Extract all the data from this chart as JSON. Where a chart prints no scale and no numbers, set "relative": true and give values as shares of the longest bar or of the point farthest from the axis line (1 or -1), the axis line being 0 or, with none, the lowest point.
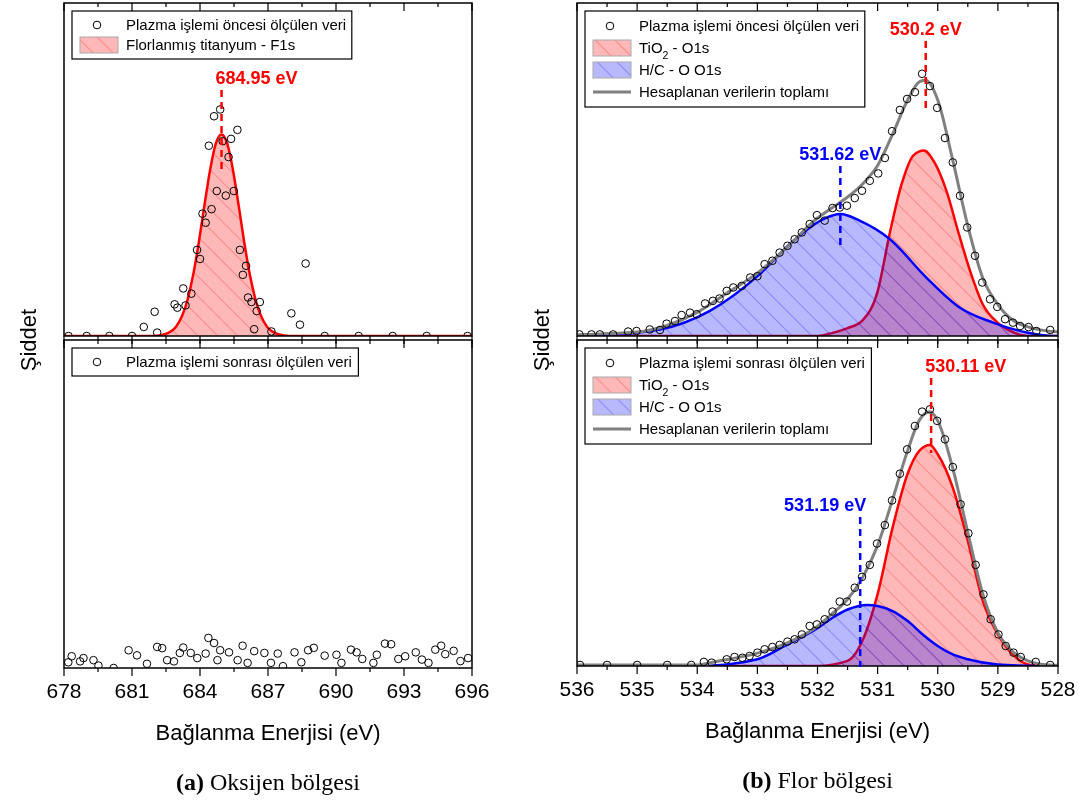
{
  "chart_data": [
    {
      "type": "scatter",
      "relative": true,
      "ylabel": "Şiddet",
      "xlim": [
        678,
        696
      ],
      "xticks": [
        678,
        {
          "value": 679.5,
          "label": null
        },
        681,
        {
          "value": 682.5,
          "label": null
        },
        684,
        {
          "value": 685.5,
          "label": null
        },
        687,
        {
          "value": 688.5,
          "label": null
        },
        690,
        {
          "value": 691.5,
          "label": null
        },
        693,
        {
          "value": 694.5,
          "label": null
        },
        696
      ],
      "tick_labels": false,
      "legend": "top left",
      "marker": "circle",
      "grid": false,
      "ref_lines": [
        {
          "axis": "x",
          "value": 684.95,
          "label": "684.95 eV",
          "color": "#ff0000",
          "line_style": "dashed"
        }
      ],
      "series": [
        {
          "name": "Plazma işlemi öncesi ölçülen veri",
          "color": "#000000",
          "x": [
            678.2,
            679,
            680,
            681,
            681.52,
            682.0,
            682.11,
            682.88,
            683.0,
            683.26,
            683.36,
            683.62,
            683.87,
            684.0,
            684.11,
            684.25,
            684.39,
            684.51,
            684.62,
            684.74,
            684.89,
            685.0,
            685.14,
            685.26,
            685.37,
            685.49,
            685.65,
            685.76,
            685.89,
            686.03,
            686.12,
            686.27,
            686.39,
            686.5,
            686.64,
            687.15,
            688.03,
            688.41,
            688.66,
            689.5,
            691,
            692.5,
            694,
            695.8
          ],
          "values": [
            0,
            0,
            0,
            0,
            0.04,
            0.107,
            0.015,
            0.14,
            0.125,
            0.21,
            0.135,
            0.187,
            0.38,
            0.34,
            0.54,
            0.5,
            0.84,
            0.56,
            0.97,
            0.64,
            1.0,
            0.86,
            0.62,
            0.79,
            0.87,
            0.64,
            0.91,
            0.38,
            0.27,
            0.31,
            0.17,
            0.15,
            0.03,
            0.11,
            0.15,
            0.02,
            0.1,
            0.05,
            0.32,
            0,
            0,
            0,
            0,
            0
          ]
        },
        {
          "name": "Florlanmış titanyum - F1s",
          "type": "area",
          "marker": "none",
          "color": "#ff0000",
          "x": [
            678,
            681.95,
            682.45,
            682.95,
            683.45,
            683.7,
            683.95,
            684.2,
            684.45,
            684.7,
            684.95,
            685.2,
            685.45,
            685.7,
            685.95,
            686.2,
            686.45,
            686.95,
            687.45,
            687.95,
            696
          ],
          "values": [
            0,
            0,
            0.008,
            0.042,
            0.16,
            0.27,
            0.415,
            0.58,
            0.735,
            0.85,
            0.89,
            0.85,
            0.735,
            0.58,
            0.415,
            0.27,
            0.16,
            0.042,
            0.008,
            0,
            0
          ]
        }
      ]
    },
    {
      "type": "scatter",
      "relative": true,
      "ylabel": "Şiddet",
      "xlim": [
        536,
        528
      ],
      "xticks": [
        536,
        {
          "value": 535.5,
          "label": null
        },
        535,
        {
          "value": 534.5,
          "label": null
        },
        534,
        {
          "value": 533.5,
          "label": null
        },
        533,
        {
          "value": 532.5,
          "label": null
        },
        532,
        {
          "value": 531.5,
          "label": null
        },
        531,
        {
          "value": 530.5,
          "label": null
        },
        530,
        {
          "value": 529.5,
          "label": null
        },
        529,
        {
          "value": 528.5,
          "label": null
        },
        528
      ],
      "tick_labels": false,
      "legend": "top left",
      "marker": "circle",
      "grid": false,
      "ref_lines": [
        {
          "axis": "x",
          "value": 530.2,
          "label": "530.2 eV",
          "color": "#ff0000",
          "line_style": "dashed"
        },
        {
          "axis": "x",
          "value": 531.62,
          "label": "531.62 eV",
          "color": "#0000ff",
          "line_style": "dashed"
        }
      ],
      "series": [
        {
          "name": "Plazma işlemi öncesi ölçülen veri",
          "color": "#000000",
          "x": [
            535.96,
            535.76,
            535.62,
            535.4,
            535.15,
            535.01,
            534.79,
            534.62,
            534.51,
            534.37,
            534.26,
            534.12,
            534.01,
            533.87,
            533.74,
            533.63,
            533.51,
            533.4,
            533.26,
            533.12,
            533.0,
            532.88,
            532.75,
            532.63,
            532.5,
            532.38,
            532.26,
            532.13,
            532.01,
            531.88,
            531.75,
            531.63,
            531.51,
            531.38,
            531.26,
            531.13,
            530.99,
            530.88,
            530.76,
            530.63,
            530.51,
            530.38,
            530.26,
            530.13,
            530.01,
            529.88,
            529.75,
            529.63,
            529.51,
            529.38,
            529.26,
            529.13,
            529.01,
            528.88,
            528.75,
            528.63,
            528.49,
            528.36,
            528.13
          ],
          "values": [
            0.006,
            0.006,
            0.006,
            0.006,
            0.017,
            0.019,
            0.025,
            0.023,
            0.047,
            0.057,
            0.08,
            0.089,
            0.083,
            0.124,
            0.134,
            0.143,
            0.172,
            0.185,
            0.191,
            0.223,
            0.228,
            0.274,
            0.287,
            0.318,
            0.344,
            0.369,
            0.395,
            0.427,
            0.461,
            0.44,
            0.488,
            0.49,
            0.497,
            0.526,
            0.554,
            0.592,
            0.62,
            0.679,
            0.781,
            0.862,
            0.904,
            0.93,
            1.0,
            0.953,
            0.87,
            0.755,
            0.662,
            0.535,
            0.414,
            0.306,
            0.204,
            0.14,
            0.111,
            0.064,
            0.051,
            0.038,
            0.034,
            0.019,
            0.023
          ]
        },
        {
          "name": "TiO$_{2}$ - O1s",
          "type": "area",
          "marker": "none",
          "color": "#ff0000",
          "x": [
            536,
            532,
            531.75,
            531.5,
            531.25,
            531,
            530.8,
            530.6,
            530.4,
            530.23,
            530.05,
            529.85,
            529.65,
            529.45,
            529.25,
            529,
            528.75,
            528.5,
            528
          ],
          "values": [
            0,
            0,
            0.012,
            0.03,
            0.06,
            0.17,
            0.39,
            0.58,
            0.69,
            0.707,
            0.66,
            0.55,
            0.39,
            0.24,
            0.12,
            0.05,
            0.015,
            0,
            0
          ]
        },
        {
          "name": "H/C - O  O1s",
          "type": "area",
          "marker": "none",
          "color": "#0000ff",
          "x": [
            536,
            535.62,
            534.62,
            533.79,
            532.96,
            532.4,
            531.9,
            531.62,
            531.3,
            530.8,
            530.19,
            529.63,
            529.08,
            528.52,
            528.08,
            528
          ],
          "values": [
            0,
            0.003,
            0.025,
            0.096,
            0.236,
            0.363,
            0.446,
            0.465,
            0.44,
            0.37,
            0.223,
            0.108,
            0.051,
            0.013,
            0,
            0
          ]
        },
        {
          "name": "Hesaplanan verilerin toplamı",
          "type": "line",
          "marker": "none",
          "color": "#808080",
          "x": [
            536,
            535,
            534.5,
            534,
            533.5,
            533,
            532.5,
            532,
            531.75,
            531.5,
            531.25,
            531,
            530.75,
            530.5,
            530.3,
            530.2,
            530,
            529.75,
            529.5,
            529.25,
            529,
            528.75,
            528.5,
            528
          ],
          "values": [
            0.005,
            0.015,
            0.04,
            0.09,
            0.165,
            0.24,
            0.34,
            0.45,
            0.49,
            0.53,
            0.58,
            0.65,
            0.77,
            0.9,
            0.97,
            0.975,
            0.9,
            0.67,
            0.42,
            0.22,
            0.12,
            0.06,
            0.035,
            0.015
          ]
        }
      ]
    },
    {
      "type": "scatter",
      "relative": true,
      "xlabel": "Bağlanma Enerjisi (eV)",
      "annotations": [
        "(a) Oksijen bölgesi"
      ],
      "xlim": [
        678,
        696
      ],
      "xticks": [
        678,
        {
          "value": 679.5,
          "label": null
        },
        681,
        {
          "value": 682.5,
          "label": null
        },
        684,
        {
          "value": 685.5,
          "label": null
        },
        687,
        {
          "value": 688.5,
          "label": null
        },
        690,
        {
          "value": 691.5,
          "label": null
        },
        693,
        {
          "value": 694.5,
          "label": null
        },
        696
      ],
      "tick_labels": "x",
      "legend": "top left",
      "marker": "circle",
      "grid": false,
      "series": [
        {
          "name": "Plazma işlemi sonrası ölçülen veri",
          "color": "#000000",
          "x": [
            678.19,
            678.34,
            678.71,
            678.86,
            679.3,
            679.52,
            680.19,
            680.85,
            681.22,
            681.66,
            682.11,
            682.33,
            682.55,
            682.85,
            683.11,
            683.26,
            683.59,
            683.88,
            684.25,
            684.37,
            684.62,
            684.77,
            684.89,
            685.28,
            685.66,
            685.88,
            686.1,
            686.39,
            686.84,
            687.13,
            687.43,
            687.66,
            688.17,
            688.47,
            688.77,
            689.02,
            689.5,
            690.02,
            690.24,
            690.66,
            690.91,
            691.16,
            691.65,
            691.8,
            692.16,
            692.43,
            692.75,
            693.05,
            693.52,
            693.79,
            694.08,
            694.38,
            694.64,
            694.82,
            695.19,
            695.49,
            695.83
          ],
          "values": [
            0.19,
            0.39,
            0.22,
            0.33,
            0.26,
            0.08,
            0,
            0.59,
            0.42,
            0.14,
            0.7,
            0.66,
            0.26,
            0.22,
            0.5,
            0.68,
            0.5,
            0.33,
            0.48,
            1.0,
            0.83,
            0.26,
            0.59,
            0.52,
            0.26,
            0.74,
            0.17,
            0.56,
            0.5,
            0.17,
            0.48,
            0.06,
            0.52,
            0.19,
            0.59,
            0.67,
            0.41,
            0.44,
            0.17,
            0.61,
            0.52,
            0.3,
            0.17,
            0.44,
            0.81,
            0.79,
            0.3,
            0.39,
            0.52,
            0.28,
            0.17,
            0.61,
            0.74,
            0.46,
            0.57,
            0.23,
            0.33
          ]
        }
      ]
    },
    {
      "type": "scatter",
      "relative": true,
      "xlabel": "Bağlanma Enerjisi (eV)",
      "annotations": [
        "(b) Flor bölgesi"
      ],
      "xlim": [
        536,
        528
      ],
      "xticks": [
        536,
        {
          "value": 535.5,
          "label": null
        },
        535,
        {
          "value": 534.5,
          "label": null
        },
        534,
        {
          "value": 533.5,
          "label": null
        },
        533,
        {
          "value": 532.5,
          "label": null
        },
        532,
        {
          "value": 531.5,
          "label": null
        },
        531,
        {
          "value": 530.5,
          "label": null
        },
        530,
        {
          "value": 529.5,
          "label": null
        },
        529,
        {
          "value": 528.5,
          "label": null
        },
        528
      ],
      "tick_labels": "x",
      "legend": "top left",
      "marker": "circle",
      "grid": false,
      "ref_lines": [
        {
          "axis": "x",
          "value": 530.11,
          "label": "530.11 eV",
          "color": "#ff0000",
          "line_style": "dashed"
        },
        {
          "axis": "x",
          "value": 531.29,
          "label": "531.19 eV",
          "color": "#0000ff",
          "line_style": "dashed"
        }
      ],
      "series": [
        {
          "name": "Plazma işlemi sonrası ölçülen veri",
          "color": "#000000",
          "x": [
            535.95,
            535.5,
            535,
            534.5,
            534.1,
            533.89,
            533.76,
            533.51,
            533.38,
            533.25,
            533.13,
            533.0,
            532.88,
            532.75,
            532.63,
            532.5,
            532.38,
            532.26,
            532.13,
            532.01,
            531.88,
            531.75,
            531.63,
            531.51,
            531.38,
            531.26,
            531.13,
            531.01,
            530.88,
            530.76,
            530.63,
            530.51,
            530.38,
            530.26,
            530.13,
            530.01,
            529.88,
            529.75,
            529.62,
            529.49,
            529.37,
            529.24,
            529.12,
            528.99,
            528.87,
            528.74,
            528.62,
            528.37,
            528.13
          ],
          "values": [
            0.004,
            0.004,
            0.004,
            0.004,
            0.004,
            0.016,
            0.013,
            0.026,
            0.035,
            0.032,
            0.039,
            0.052,
            0.065,
            0.074,
            0.082,
            0.095,
            0.104,
            0.123,
            0.156,
            0.162,
            0.182,
            0.212,
            0.251,
            0.251,
            0.305,
            0.347,
            0.394,
            0.477,
            0.549,
            0.645,
            0.749,
            0.844,
            0.935,
            0.991,
            1.0,
            0.955,
            0.883,
            0.775,
            0.63,
            0.517,
            0.394,
            0.279,
            0.182,
            0.123,
            0.078,
            0.052,
            0.035,
            0.016,
            0.004
          ]
        },
        {
          "name": "TiO$_{2}$ - O1s",
          "type": "area",
          "marker": "none",
          "color": "#ff0000",
          "x": [
            533.8,
            532,
            531.5,
            531.25,
            531,
            530.75,
            530.5,
            530.3,
            530.13,
            530,
            529.75,
            529.5,
            529.25,
            529,
            528.75,
            528.5,
            528.3
          ],
          "values": [
            0,
            0,
            0.02,
            0.1,
            0.28,
            0.54,
            0.75,
            0.84,
            0.861,
            0.825,
            0.695,
            0.487,
            0.253,
            0.123,
            0.045,
            0.006,
            0
          ]
        },
        {
          "name": "H/C - O  O1s",
          "type": "area",
          "marker": "none",
          "color": "#0000ff",
          "x": [
            533.8,
            533,
            532.5,
            532,
            531.75,
            531.5,
            531.18,
            531,
            530.75,
            530.5,
            530.25,
            530,
            529.75,
            529.5,
            529,
            528.3
          ],
          "values": [
            0,
            0.026,
            0.084,
            0.147,
            0.188,
            0.22,
            0.238,
            0.234,
            0.214,
            0.175,
            0.123,
            0.078,
            0.045,
            0.026,
            0.006,
            0
          ]
        },
        {
          "name": "Hesaplanan verilerin toplamı",
          "type": "line",
          "marker": "none",
          "color": "#808080",
          "x": [
            536,
            534,
            533.8,
            533.5,
            533,
            532.5,
            532,
            531.75,
            531.5,
            531.25,
            531,
            530.75,
            530.5,
            530.3,
            530.13,
            530,
            529.75,
            529.5,
            529.25,
            529,
            528.75,
            528.5,
            528.2,
            528
          ],
          "values": [
            0.004,
            0.004,
            0.012,
            0.025,
            0.05,
            0.09,
            0.155,
            0.205,
            0.26,
            0.345,
            0.47,
            0.65,
            0.84,
            0.96,
            0.99,
            0.955,
            0.77,
            0.52,
            0.28,
            0.13,
            0.055,
            0.02,
            0.005,
            0.003
          ]
        }
      ]
    }
  ]
}
